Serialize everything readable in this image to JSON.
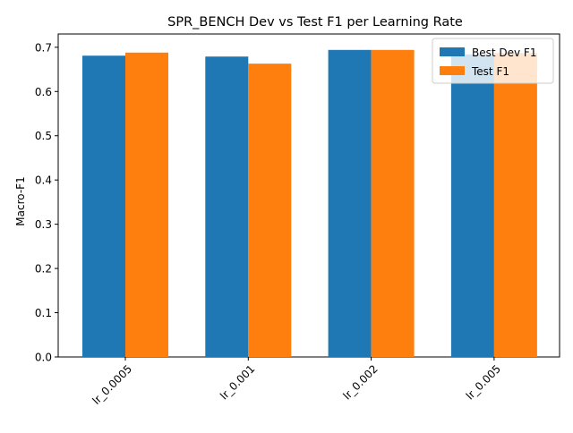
{
  "chart_data": {
    "type": "bar",
    "title": "SPR_BENCH Dev vs Test F1 per Learning Rate",
    "xlabel": "",
    "ylabel": "Macro-F1",
    "categories": [
      "lr_0.0005",
      "lr_0.001",
      "lr_0.002",
      "lr_0.005"
    ],
    "series": [
      {
        "name": "Best Dev F1",
        "color": "#1f77b4",
        "values": [
          0.681,
          0.679,
          0.694,
          0.684
        ]
      },
      {
        "name": "Test F1",
        "color": "#ff7f0e",
        "values": [
          0.688,
          0.663,
          0.694,
          0.687
        ]
      }
    ],
    "ylim": [
      0,
      0.73
    ],
    "yticks": [
      "0.0",
      "0.1",
      "0.2",
      "0.3",
      "0.4",
      "0.5",
      "0.6",
      "0.7"
    ],
    "grid": false,
    "legend_position": "top-right",
    "xtick_rotation": 45
  }
}
